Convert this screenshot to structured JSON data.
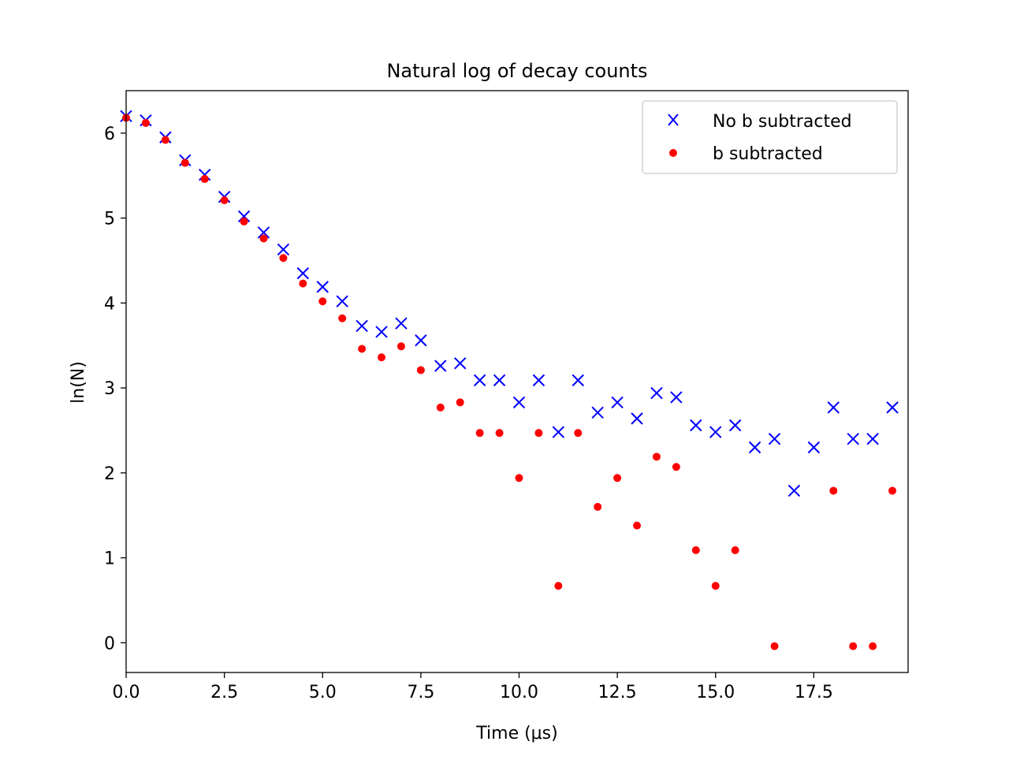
{
  "chart_data": {
    "type": "scatter",
    "title": "Natural log of decay counts",
    "xlabel": "Time (μs)",
    "ylabel": "ln(N)",
    "xlim": [
      0,
      19.9
    ],
    "ylim": [
      -0.35,
      6.5
    ],
    "x_ticks": [
      0.0,
      2.5,
      5.0,
      7.5,
      10.0,
      12.5,
      15.0,
      17.5
    ],
    "x_tick_labels": [
      "0.0",
      "2.5",
      "5.0",
      "7.5",
      "10.0",
      "12.5",
      "15.0",
      "17.5"
    ],
    "y_ticks": [
      0,
      1,
      2,
      3,
      4,
      5,
      6
    ],
    "y_tick_labels": [
      "0",
      "1",
      "2",
      "3",
      "4",
      "5",
      "6"
    ],
    "grid": false,
    "legend_position": "top-right",
    "series": [
      {
        "name": "No b subtracted",
        "marker": "x",
        "color": "#0000ff",
        "x": [
          0,
          0.5,
          1,
          1.5,
          2,
          2.5,
          3,
          3.5,
          4,
          4.5,
          5,
          5.5,
          6,
          6.5,
          7,
          7.5,
          8,
          8.5,
          9,
          9.5,
          10,
          10.5,
          11,
          11.5,
          12,
          12.5,
          13,
          13.5,
          14,
          14.5,
          15,
          15.5,
          16,
          16.5,
          17,
          17.5,
          18,
          18.5,
          19,
          19.5
        ],
        "y": [
          6.2,
          6.15,
          5.95,
          5.68,
          5.51,
          5.25,
          5.02,
          4.83,
          4.63,
          4.35,
          4.19,
          4.02,
          3.73,
          3.66,
          3.76,
          3.56,
          3.26,
          3.29,
          3.09,
          3.09,
          2.83,
          3.09,
          2.48,
          3.09,
          2.71,
          2.83,
          2.64,
          2.94,
          2.89,
          2.56,
          2.48,
          2.56,
          2.3,
          2.4,
          1.79,
          2.3,
          2.77,
          2.4,
          2.4,
          2.77
        ]
      },
      {
        "name": "b subtracted",
        "marker": "o",
        "color": "#ff0000",
        "x": [
          0,
          0.5,
          1,
          1.5,
          2,
          2.5,
          3,
          3.5,
          4,
          4.5,
          5,
          5.5,
          6,
          6.5,
          7,
          7.5,
          8,
          8.5,
          9,
          9.5,
          10,
          10.5,
          11,
          11.5,
          12,
          12.5,
          13,
          13.5,
          14,
          14.5,
          15,
          15.5,
          16.5,
          18,
          18.5,
          19,
          19.5
        ],
        "y": [
          6.18,
          6.12,
          5.92,
          5.65,
          5.46,
          5.21,
          4.96,
          4.76,
          4.53,
          4.23,
          4.02,
          3.82,
          3.46,
          3.36,
          3.49,
          3.21,
          2.77,
          2.83,
          2.47,
          2.47,
          1.94,
          2.47,
          0.67,
          2.47,
          1.6,
          1.94,
          1.38,
          2.19,
          2.07,
          1.09,
          0.67,
          1.09,
          -0.04,
          1.79,
          -0.04,
          -0.04,
          1.79
        ]
      }
    ]
  }
}
